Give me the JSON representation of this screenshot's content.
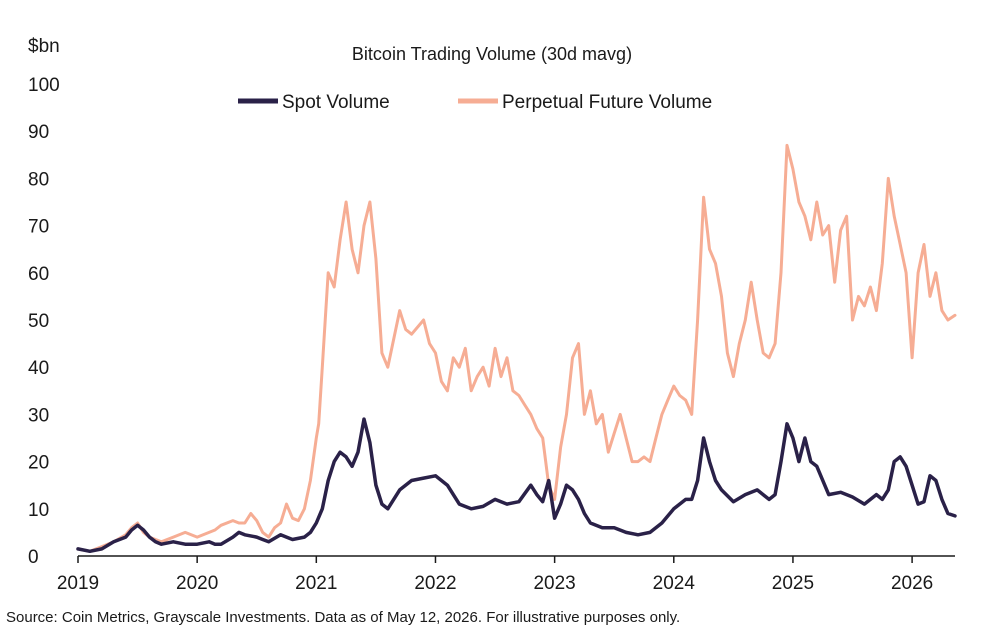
{
  "chart_data": {
    "type": "line",
    "title": "Bitcoin Trading Volume (30d mavg)",
    "ylabel": "$bn",
    "ylim": [
      0,
      100
    ],
    "yticks": [
      "0",
      "10",
      "20",
      "30",
      "40",
      "50",
      "60",
      "70",
      "80",
      "90",
      "100"
    ],
    "xlim": [
      2019.0,
      2026.36
    ],
    "xticks": [
      "2019",
      "2020",
      "2021",
      "2022",
      "2023",
      "2024",
      "2025",
      "2026"
    ],
    "grid": false,
    "legend_position": "top-center",
    "colors": {
      "spot": "#2a2148",
      "perp": "#f6ad94"
    },
    "series": [
      {
        "name": "Spot Volume",
        "x": [
          2019.0,
          2019.1,
          2019.2,
          2019.3,
          2019.4,
          2019.45,
          2019.5,
          2019.55,
          2019.6,
          2019.65,
          2019.7,
          2019.8,
          2019.9,
          2020.0,
          2020.1,
          2020.15,
          2020.2,
          2020.3,
          2020.35,
          2020.4,
          2020.5,
          2020.55,
          2020.6,
          2020.7,
          2020.75,
          2020.8,
          2020.9,
          2020.95,
          2021.0,
          2021.05,
          2021.1,
          2021.15,
          2021.2,
          2021.25,
          2021.3,
          2021.35,
          2021.4,
          2021.45,
          2021.5,
          2021.55,
          2021.6,
          2021.7,
          2021.8,
          2021.9,
          2022.0,
          2022.1,
          2022.2,
          2022.3,
          2022.4,
          2022.5,
          2022.6,
          2022.7,
          2022.8,
          2022.85,
          2022.9,
          2022.95,
          2023.0,
          2023.05,
          2023.1,
          2023.15,
          2023.2,
          2023.25,
          2023.3,
          2023.4,
          2023.5,
          2023.6,
          2023.7,
          2023.8,
          2023.9,
          2024.0,
          2024.1,
          2024.15,
          2024.2,
          2024.25,
          2024.3,
          2024.35,
          2024.4,
          2024.5,
          2024.6,
          2024.7,
          2024.8,
          2024.85,
          2024.9,
          2024.95,
          2025.0,
          2025.05,
          2025.1,
          2025.15,
          2025.2,
          2025.3,
          2025.4,
          2025.5,
          2025.6,
          2025.7,
          2025.75,
          2025.8,
          2025.85,
          2025.9,
          2025.95,
          2026.0,
          2026.05,
          2026.1,
          2026.15,
          2026.2,
          2026.25,
          2026.3,
          2026.36
        ],
        "values": [
          1.5,
          1.0,
          1.5,
          3.0,
          4.0,
          5.5,
          6.5,
          5.5,
          4.0,
          3.0,
          2.5,
          3.0,
          2.5,
          2.5,
          3.0,
          2.5,
          2.5,
          4.0,
          5.0,
          4.5,
          4.0,
          3.5,
          3.0,
          4.5,
          4.0,
          3.5,
          4.0,
          5.0,
          7.0,
          10.0,
          16.0,
          20.0,
          22.0,
          21.0,
          19.0,
          22.0,
          29.0,
          24.0,
          15.0,
          11.0,
          10.0,
          14.0,
          16.0,
          16.5,
          17.0,
          15.0,
          11.0,
          10.0,
          10.5,
          12.0,
          11.0,
          11.5,
          15.0,
          13.0,
          11.5,
          16.0,
          8.0,
          11.0,
          15.0,
          14.0,
          12.0,
          9.0,
          7.0,
          6.0,
          6.0,
          5.0,
          4.5,
          5.0,
          7.0,
          10.0,
          12.0,
          12.0,
          16.0,
          25.0,
          20.0,
          16.0,
          14.0,
          11.5,
          13.0,
          14.0,
          12.0,
          13.0,
          20.0,
          28.0,
          25.0,
          20.0,
          25.0,
          20.0,
          19.0,
          13.0,
          13.5,
          12.5,
          11.0,
          13.0,
          12.0,
          14.0,
          20.0,
          21.0,
          19.0,
          15.0,
          11.0,
          11.5,
          17.0,
          16.0,
          12.0,
          9.0,
          8.5
        ]
      },
      {
        "name": "Perpetual Future Volume",
        "x": [
          2019.0,
          2019.1,
          2019.2,
          2019.3,
          2019.4,
          2019.45,
          2019.5,
          2019.55,
          2019.6,
          2019.65,
          2019.7,
          2019.8,
          2019.9,
          2020.0,
          2020.1,
          2020.15,
          2020.2,
          2020.3,
          2020.35,
          2020.4,
          2020.45,
          2020.5,
          2020.55,
          2020.6,
          2020.65,
          2020.7,
          2020.75,
          2020.8,
          2020.85,
          2020.9,
          2020.95,
          2021.0,
          2021.02,
          2021.05,
          2021.08,
          2021.1,
          2021.15,
          2021.2,
          2021.25,
          2021.3,
          2021.35,
          2021.4,
          2021.45,
          2021.5,
          2021.55,
          2021.6,
          2021.7,
          2021.75,
          2021.8,
          2021.9,
          2021.95,
          2022.0,
          2022.05,
          2022.1,
          2022.15,
          2022.2,
          2022.25,
          2022.3,
          2022.35,
          2022.4,
          2022.45,
          2022.5,
          2022.55,
          2022.6,
          2022.65,
          2022.7,
          2022.75,
          2022.8,
          2022.85,
          2022.9,
          2022.95,
          2023.0,
          2023.05,
          2023.1,
          2023.15,
          2023.2,
          2023.25,
          2023.3,
          2023.35,
          2023.4,
          2023.45,
          2023.5,
          2023.55,
          2023.6,
          2023.65,
          2023.7,
          2023.75,
          2023.8,
          2023.85,
          2023.9,
          2023.95,
          2024.0,
          2024.05,
          2024.1,
          2024.15,
          2024.2,
          2024.25,
          2024.3,
          2024.35,
          2024.4,
          2024.45,
          2024.5,
          2024.55,
          2024.6,
          2024.65,
          2024.7,
          2024.75,
          2024.8,
          2024.85,
          2024.9,
          2024.95,
          2025.0,
          2025.05,
          2025.1,
          2025.15,
          2025.2,
          2025.25,
          2025.3,
          2025.35,
          2025.4,
          2025.45,
          2025.5,
          2025.55,
          2025.6,
          2025.65,
          2025.7,
          2025.75,
          2025.8,
          2025.85,
          2025.9,
          2025.95,
          2026.0,
          2026.05,
          2026.1,
          2026.15,
          2026.2,
          2026.25,
          2026.3,
          2026.36
        ],
        "values": [
          1.5,
          1.0,
          2.0,
          3.0,
          4.5,
          6.0,
          7.0,
          5.0,
          4.0,
          3.5,
          3.0,
          4.0,
          5.0,
          4.0,
          5.0,
          5.5,
          6.5,
          7.5,
          7.0,
          7.0,
          9.0,
          7.5,
          5.0,
          4.0,
          6.0,
          7.0,
          11.0,
          8.0,
          7.5,
          10.0,
          16.0,
          25.0,
          28.0,
          40.0,
          52.0,
          60.0,
          57.0,
          67.0,
          75.0,
          65.0,
          60.0,
          70.0,
          75.0,
          63.0,
          43.0,
          40.0,
          52.0,
          48.0,
          47.0,
          50.0,
          45.0,
          43.0,
          37.0,
          35.0,
          42.0,
          40.0,
          44.0,
          35.0,
          38.0,
          40.0,
          36.0,
          44.0,
          38.0,
          42.0,
          35.0,
          34.0,
          32.0,
          30.0,
          27.0,
          25.0,
          15.0,
          12.0,
          23.0,
          30.0,
          42.0,
          45.0,
          30.0,
          35.0,
          28.0,
          30.0,
          22.0,
          26.0,
          30.0,
          25.0,
          20.0,
          20.0,
          21.0,
          20.0,
          25.0,
          30.0,
          33.0,
          36.0,
          34.0,
          33.0,
          30.0,
          50.0,
          76.0,
          65.0,
          62.0,
          55.0,
          43.0,
          38.0,
          45.0,
          50.0,
          58.0,
          50.0,
          43.0,
          42.0,
          45.0,
          60.0,
          87.0,
          82.0,
          75.0,
          72.0,
          67.0,
          75.0,
          68.0,
          70.0,
          58.0,
          69.0,
          72.0,
          50.0,
          55.0,
          53.0,
          57.0,
          52.0,
          62.0,
          80.0,
          72.0,
          66.0,
          60.0,
          42.0,
          60.0,
          66.0,
          55.0,
          60.0,
          52.0,
          50.0,
          51.0
        ]
      }
    ],
    "source_note": "Source: Coin Metrics, Grayscale Investments. Data as of May 12, 2026. For illustrative purposes only."
  }
}
